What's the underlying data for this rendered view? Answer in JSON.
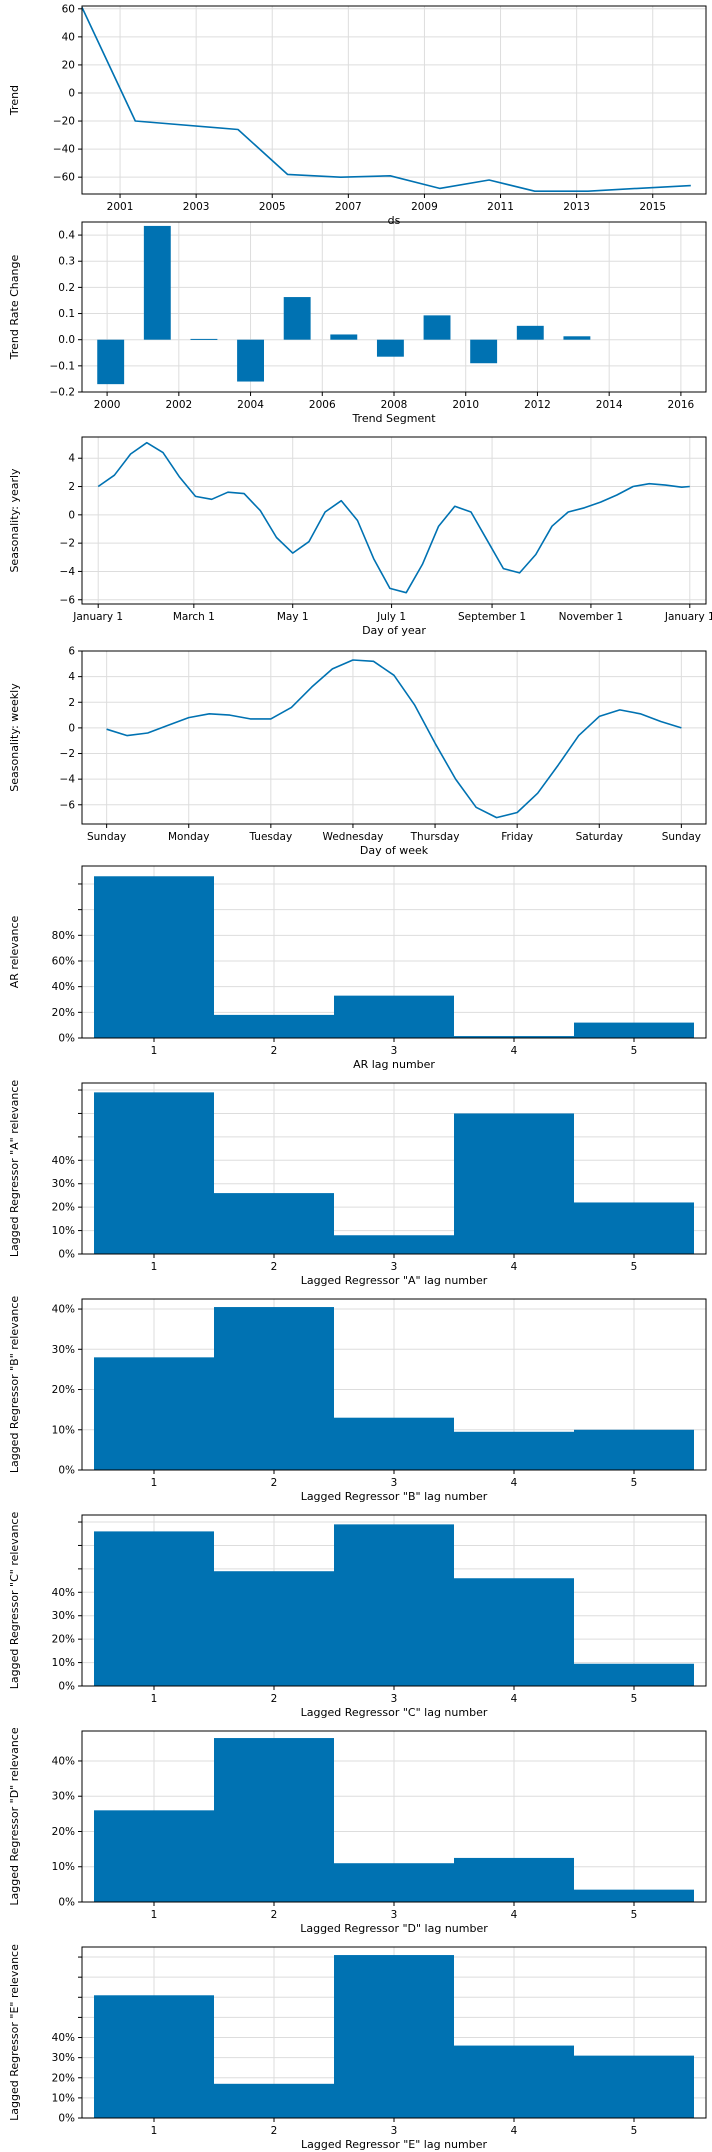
{
  "chart_data": [
    {
      "type": "line",
      "ylabel": "Trend",
      "xlabel": "ds",
      "xlim": [
        2000.0,
        2016.4
      ],
      "ylim": [
        -72,
        62
      ],
      "xticks": [
        2001,
        2003,
        2005,
        2007,
        2009,
        2011,
        2013,
        2015
      ],
      "xtick_labels": [
        "2001",
        "2003",
        "2005",
        "2007",
        "2009",
        "2011",
        "2013",
        "2015"
      ],
      "yticks": [
        -60,
        -40,
        -20,
        0,
        20,
        40,
        60
      ],
      "ytick_labels": [
        "−60",
        "−40",
        "−20",
        "0",
        "20",
        "40",
        "60"
      ],
      "grid": true,
      "color": "#0072b2",
      "x": [
        2000.0,
        2001.4,
        2004.1,
        2005.4,
        2006.8,
        2008.1,
        2009.4,
        2010.7,
        2011.9,
        2013.3,
        2014.6,
        2016.0
      ],
      "values": [
        61,
        -20,
        -26,
        -58,
        -60,
        -59,
        -68,
        -62,
        -70,
        -70,
        -68,
        -66
      ]
    },
    {
      "type": "bar",
      "ylabel": "Trend Rate Change",
      "xlabel": "Trend Segment",
      "xlim": [
        1999.3,
        2016.7
      ],
      "ylim": [
        -0.2,
        0.45
      ],
      "xticks": [
        2000,
        2002,
        2004,
        2006,
        2008,
        2010,
        2012,
        2014,
        2016
      ],
      "xtick_labels": [
        "2000",
        "2002",
        "2004",
        "2006",
        "2008",
        "2010",
        "2012",
        "2014",
        "2016"
      ],
      "yticks": [
        -0.2,
        -0.1,
        0.0,
        0.1,
        0.2,
        0.3,
        0.4
      ],
      "ytick_labels": [
        "−0.2",
        "−0.1",
        "0.0",
        "0.1",
        "0.2",
        "0.3",
        "0.4"
      ],
      "grid": true,
      "color": "#0072b2",
      "bar_width": 0.75,
      "x": [
        2000.1,
        2001.4,
        2002.7,
        2004.0,
        2005.3,
        2006.6,
        2007.9,
        2009.2,
        2010.5,
        2011.8,
        2013.1
      ],
      "values": [
        -0.17,
        0.435,
        0.003,
        -0.16,
        0.163,
        0.02,
        -0.065,
        0.093,
        -0.09,
        0.053,
        0.013
      ]
    },
    {
      "type": "line",
      "ylabel": "Seasonality: yearly",
      "xlabel": "Day of year",
      "xlim": [
        -10,
        375
      ],
      "ylim": [
        -6.3,
        5.5
      ],
      "xticks": [
        0,
        59,
        120,
        181,
        243,
        304,
        365
      ],
      "xtick_labels": [
        "January 1",
        "March 1",
        "May 1",
        "July 1",
        "September 1",
        "November 1",
        "January 1"
      ],
      "yticks": [
        -6,
        -4,
        -2,
        0,
        2,
        4
      ],
      "ytick_labels": [
        "−6",
        "−4",
        "−2",
        "0",
        "2",
        "4"
      ],
      "grid": true,
      "color": "#0072b2",
      "x": [
        0,
        10,
        20,
        30,
        40,
        50,
        60,
        70,
        80,
        90,
        100,
        110,
        120,
        130,
        140,
        150,
        160,
        170,
        180,
        190,
        200,
        210,
        220,
        230,
        240,
        250,
        260,
        270,
        280,
        290,
        300,
        310,
        320,
        330,
        340,
        350,
        360,
        365
      ],
      "values": [
        2.0,
        2.8,
        4.3,
        5.1,
        4.4,
        2.7,
        1.3,
        1.1,
        1.6,
        1.5,
        0.3,
        -1.6,
        -2.7,
        -1.9,
        0.2,
        1.0,
        -0.4,
        -3.1,
        -5.2,
        -5.5,
        -3.5,
        -0.8,
        0.6,
        0.2,
        -1.8,
        -3.8,
        -4.1,
        -2.8,
        -0.8,
        0.2,
        0.5,
        0.9,
        1.4,
        2.0,
        2.2,
        2.1,
        1.95,
        2.0
      ]
    },
    {
      "type": "line",
      "ylabel": "Seasonality: weekly",
      "xlabel": "Day of week",
      "xlim": [
        -0.3,
        7.3
      ],
      "ylim": [
        -7.5,
        6
      ],
      "xticks": [
        0,
        1,
        2,
        3,
        4,
        5,
        6,
        7
      ],
      "xtick_labels": [
        "Sunday",
        "Monday",
        "Tuesday",
        "Wednesday",
        "Thursday",
        "Friday",
        "Saturday",
        "Sunday"
      ],
      "yticks": [
        -6,
        -4,
        -2,
        0,
        2,
        4,
        6
      ],
      "ytick_labels": [
        "−6",
        "−4",
        "−2",
        "0",
        "2",
        "4",
        "6"
      ],
      "grid": true,
      "color": "#0072b2",
      "x": [
        0,
        0.25,
        0.5,
        0.75,
        1.0,
        1.25,
        1.5,
        1.75,
        2.0,
        2.25,
        2.5,
        2.75,
        3.0,
        3.25,
        3.5,
        3.75,
        4.0,
        4.25,
        4.5,
        4.75,
        5.0,
        5.25,
        5.5,
        5.75,
        6.0,
        6.25,
        6.5,
        6.75,
        7.0
      ],
      "values": [
        -0.1,
        -0.6,
        -0.4,
        0.2,
        0.8,
        1.1,
        1.0,
        0.7,
        0.7,
        1.6,
        3.2,
        4.6,
        5.3,
        5.2,
        4.1,
        1.8,
        -1.2,
        -4.0,
        -6.2,
        -7.0,
        -6.6,
        -5.1,
        -2.9,
        -0.6,
        0.9,
        1.4,
        1.1,
        0.5,
        0.0
      ]
    },
    {
      "type": "bar",
      "ylabel": "AR relevance",
      "xlabel": "AR lag number",
      "categories": [
        "1",
        "2",
        "3",
        "4",
        "5"
      ],
      "values": [
        126,
        18,
        33,
        1.5,
        12
      ],
      "ylim": [
        0,
        134
      ],
      "yticks": [
        0,
        20,
        40,
        60,
        80,
        100,
        120
      ],
      "ytick_labels": [
        "0%",
        "20%",
        "40%",
        "60%",
        "80%",
        "",
        ""
      ],
      "grid": true,
      "color": "#0072b2"
    },
    {
      "type": "bar",
      "ylabel": "Lagged Regressor \"A\" relevance",
      "xlabel": "Lagged Regressor \"A\" lag number",
      "categories": [
        "1",
        "2",
        "3",
        "4",
        "5"
      ],
      "values": [
        69,
        26,
        8,
        60,
        22
      ],
      "ylim": [
        0,
        73
      ],
      "yticks": [
        0,
        10,
        20,
        30,
        40,
        50,
        60,
        70
      ],
      "ytick_labels": [
        "0%",
        "10%",
        "20%",
        "30%",
        "40%",
        "",
        "",
        ""
      ],
      "grid": true,
      "color": "#0072b2"
    },
    {
      "type": "bar",
      "ylabel": "Lagged Regressor \"B\" relevance",
      "xlabel": "Lagged Regressor \"B\" lag number",
      "categories": [
        "1",
        "2",
        "3",
        "4",
        "5"
      ],
      "values": [
        28,
        40.5,
        13,
        9.5,
        10
      ],
      "ylim": [
        0,
        42.5
      ],
      "yticks": [
        0,
        10,
        20,
        30,
        40
      ],
      "ytick_labels": [
        "0%",
        "10%",
        "20%",
        "30%",
        "40%"
      ],
      "grid": true,
      "color": "#0072b2"
    },
    {
      "type": "bar",
      "ylabel": "Lagged Regressor \"C\" relevance",
      "xlabel": "Lagged Regressor \"C\" lag number",
      "categories": [
        "1",
        "2",
        "3",
        "4",
        "5"
      ],
      "values": [
        66,
        49,
        69,
        46,
        9.5
      ],
      "ylim": [
        0,
        73
      ],
      "yticks": [
        0,
        10,
        20,
        30,
        40,
        50,
        60,
        70
      ],
      "ytick_labels": [
        "0%",
        "10%",
        "20%",
        "30%",
        "40%",
        "",
        "",
        ""
      ],
      "grid": true,
      "color": "#0072b2"
    },
    {
      "type": "bar",
      "ylabel": "Lagged Regressor \"D\" relevance",
      "xlabel": "Lagged Regressor \"D\" lag number",
      "categories": [
        "1",
        "2",
        "3",
        "4",
        "5"
      ],
      "values": [
        26,
        46.5,
        11,
        12.5,
        3.5
      ],
      "ylim": [
        0,
        48.5
      ],
      "yticks": [
        0,
        10,
        20,
        30,
        40
      ],
      "ytick_labels": [
        "0%",
        "10%",
        "20%",
        "30%",
        "40%"
      ],
      "grid": true,
      "color": "#0072b2"
    },
    {
      "type": "bar",
      "ylabel": "Lagged Regressor \"E\" relevance",
      "xlabel": "Lagged Regressor \"E\" lag number",
      "categories": [
        "1",
        "2",
        "3",
        "4",
        "5"
      ],
      "values": [
        61,
        17,
        81,
        36,
        31
      ],
      "ylim": [
        0,
        85
      ],
      "yticks": [
        0,
        10,
        20,
        30,
        40,
        50,
        60,
        70,
        80
      ],
      "ytick_labels": [
        "0%",
        "10%",
        "20%",
        "30%",
        "40%",
        "",
        "",
        "",
        ""
      ],
      "grid": true,
      "color": "#0072b2"
    }
  ]
}
